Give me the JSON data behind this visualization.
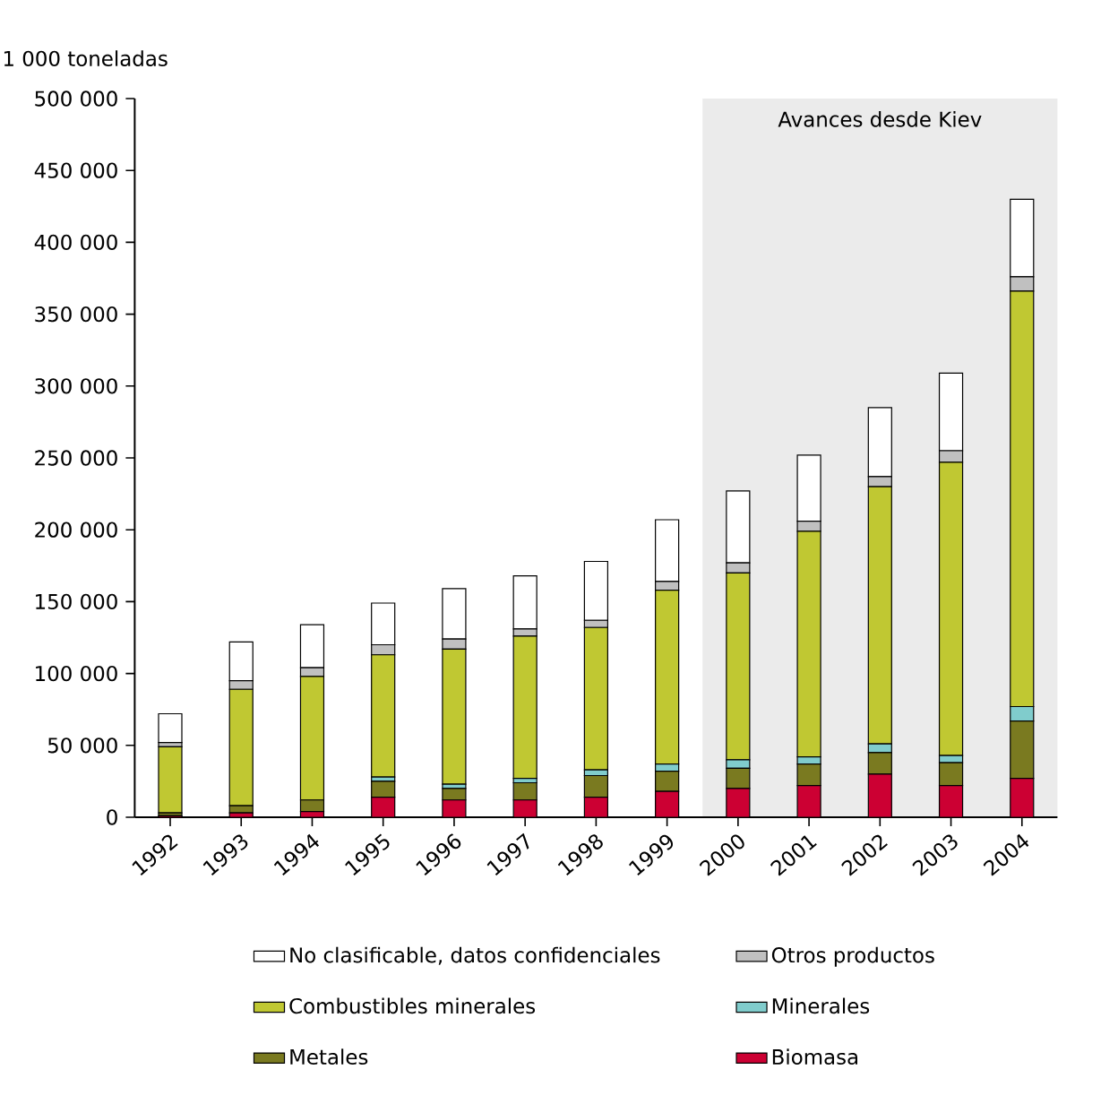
{
  "chart_data": {
    "type": "bar",
    "stacked": true,
    "ylabel": "1 000 toneladas",
    "categories": [
      "1992",
      "1993",
      "1994",
      "1995",
      "1996",
      "1997",
      "1998",
      "1999",
      "2000",
      "2001",
      "2002",
      "2003",
      "2004"
    ],
    "series": [
      {
        "name": "Biomasa",
        "color": "#cc0033",
        "values": [
          1000,
          3000,
          4000,
          14000,
          12000,
          12000,
          14000,
          18000,
          20000,
          22000,
          30000,
          22000,
          27000
        ]
      },
      {
        "name": "Metales",
        "color": "#7a7a20",
        "values": [
          2000,
          5000,
          8000,
          11000,
          8000,
          12000,
          15000,
          14000,
          14000,
          15000,
          15000,
          16000,
          40000
        ]
      },
      {
        "name": "Minerales",
        "color": "#80cccc",
        "values": [
          null,
          null,
          null,
          3000,
          3000,
          3000,
          4000,
          5000,
          6000,
          5000,
          6000,
          5000,
          10000
        ]
      },
      {
        "name": "Combustibles minerales",
        "color": "#c0c832",
        "values": [
          46000,
          81000,
          86000,
          85000,
          94000,
          99000,
          99000,
          121000,
          130000,
          157000,
          179000,
          204000,
          289000
        ]
      },
      {
        "name": "Otros productos",
        "color": "#c0c0c0",
        "values": [
          3000,
          6000,
          6000,
          7000,
          7000,
          5000,
          5000,
          6000,
          7000,
          7000,
          7000,
          8000,
          10000
        ]
      },
      {
        "name": "No clasificable, datos confidenciales",
        "color": "#ffffff",
        "values": [
          20000,
          27000,
          30000,
          29000,
          35000,
          37000,
          41000,
          43000,
          50000,
          46000,
          48000,
          54000,
          54000
        ]
      }
    ],
    "ylim": [
      0,
      500000
    ],
    "yticks": [
      0,
      {
        "value": 50000,
        "label": "50 000"
      },
      {
        "value": 100000,
        "label": "100 000"
      },
      {
        "value": 150000,
        "label": "150 000"
      },
      {
        "value": 200000,
        "label": "200 000"
      },
      {
        "value": 250000,
        "label": "250 000"
      },
      {
        "value": 300000,
        "label": "300 000"
      },
      {
        "value": 350000,
        "label": "350 000"
      },
      {
        "value": 400000,
        "label": "400 000"
      },
      {
        "value": 450000,
        "label": "450 000"
      },
      {
        "value": 500000,
        "label": "500 000"
      }
    ],
    "bands": [
      {
        "axis": "x",
        "from": "2000",
        "to": "2004",
        "label": "Avances desde Kiev",
        "color": "#ebebeb"
      }
    ],
    "grid": false,
    "legend": "bottom"
  }
}
